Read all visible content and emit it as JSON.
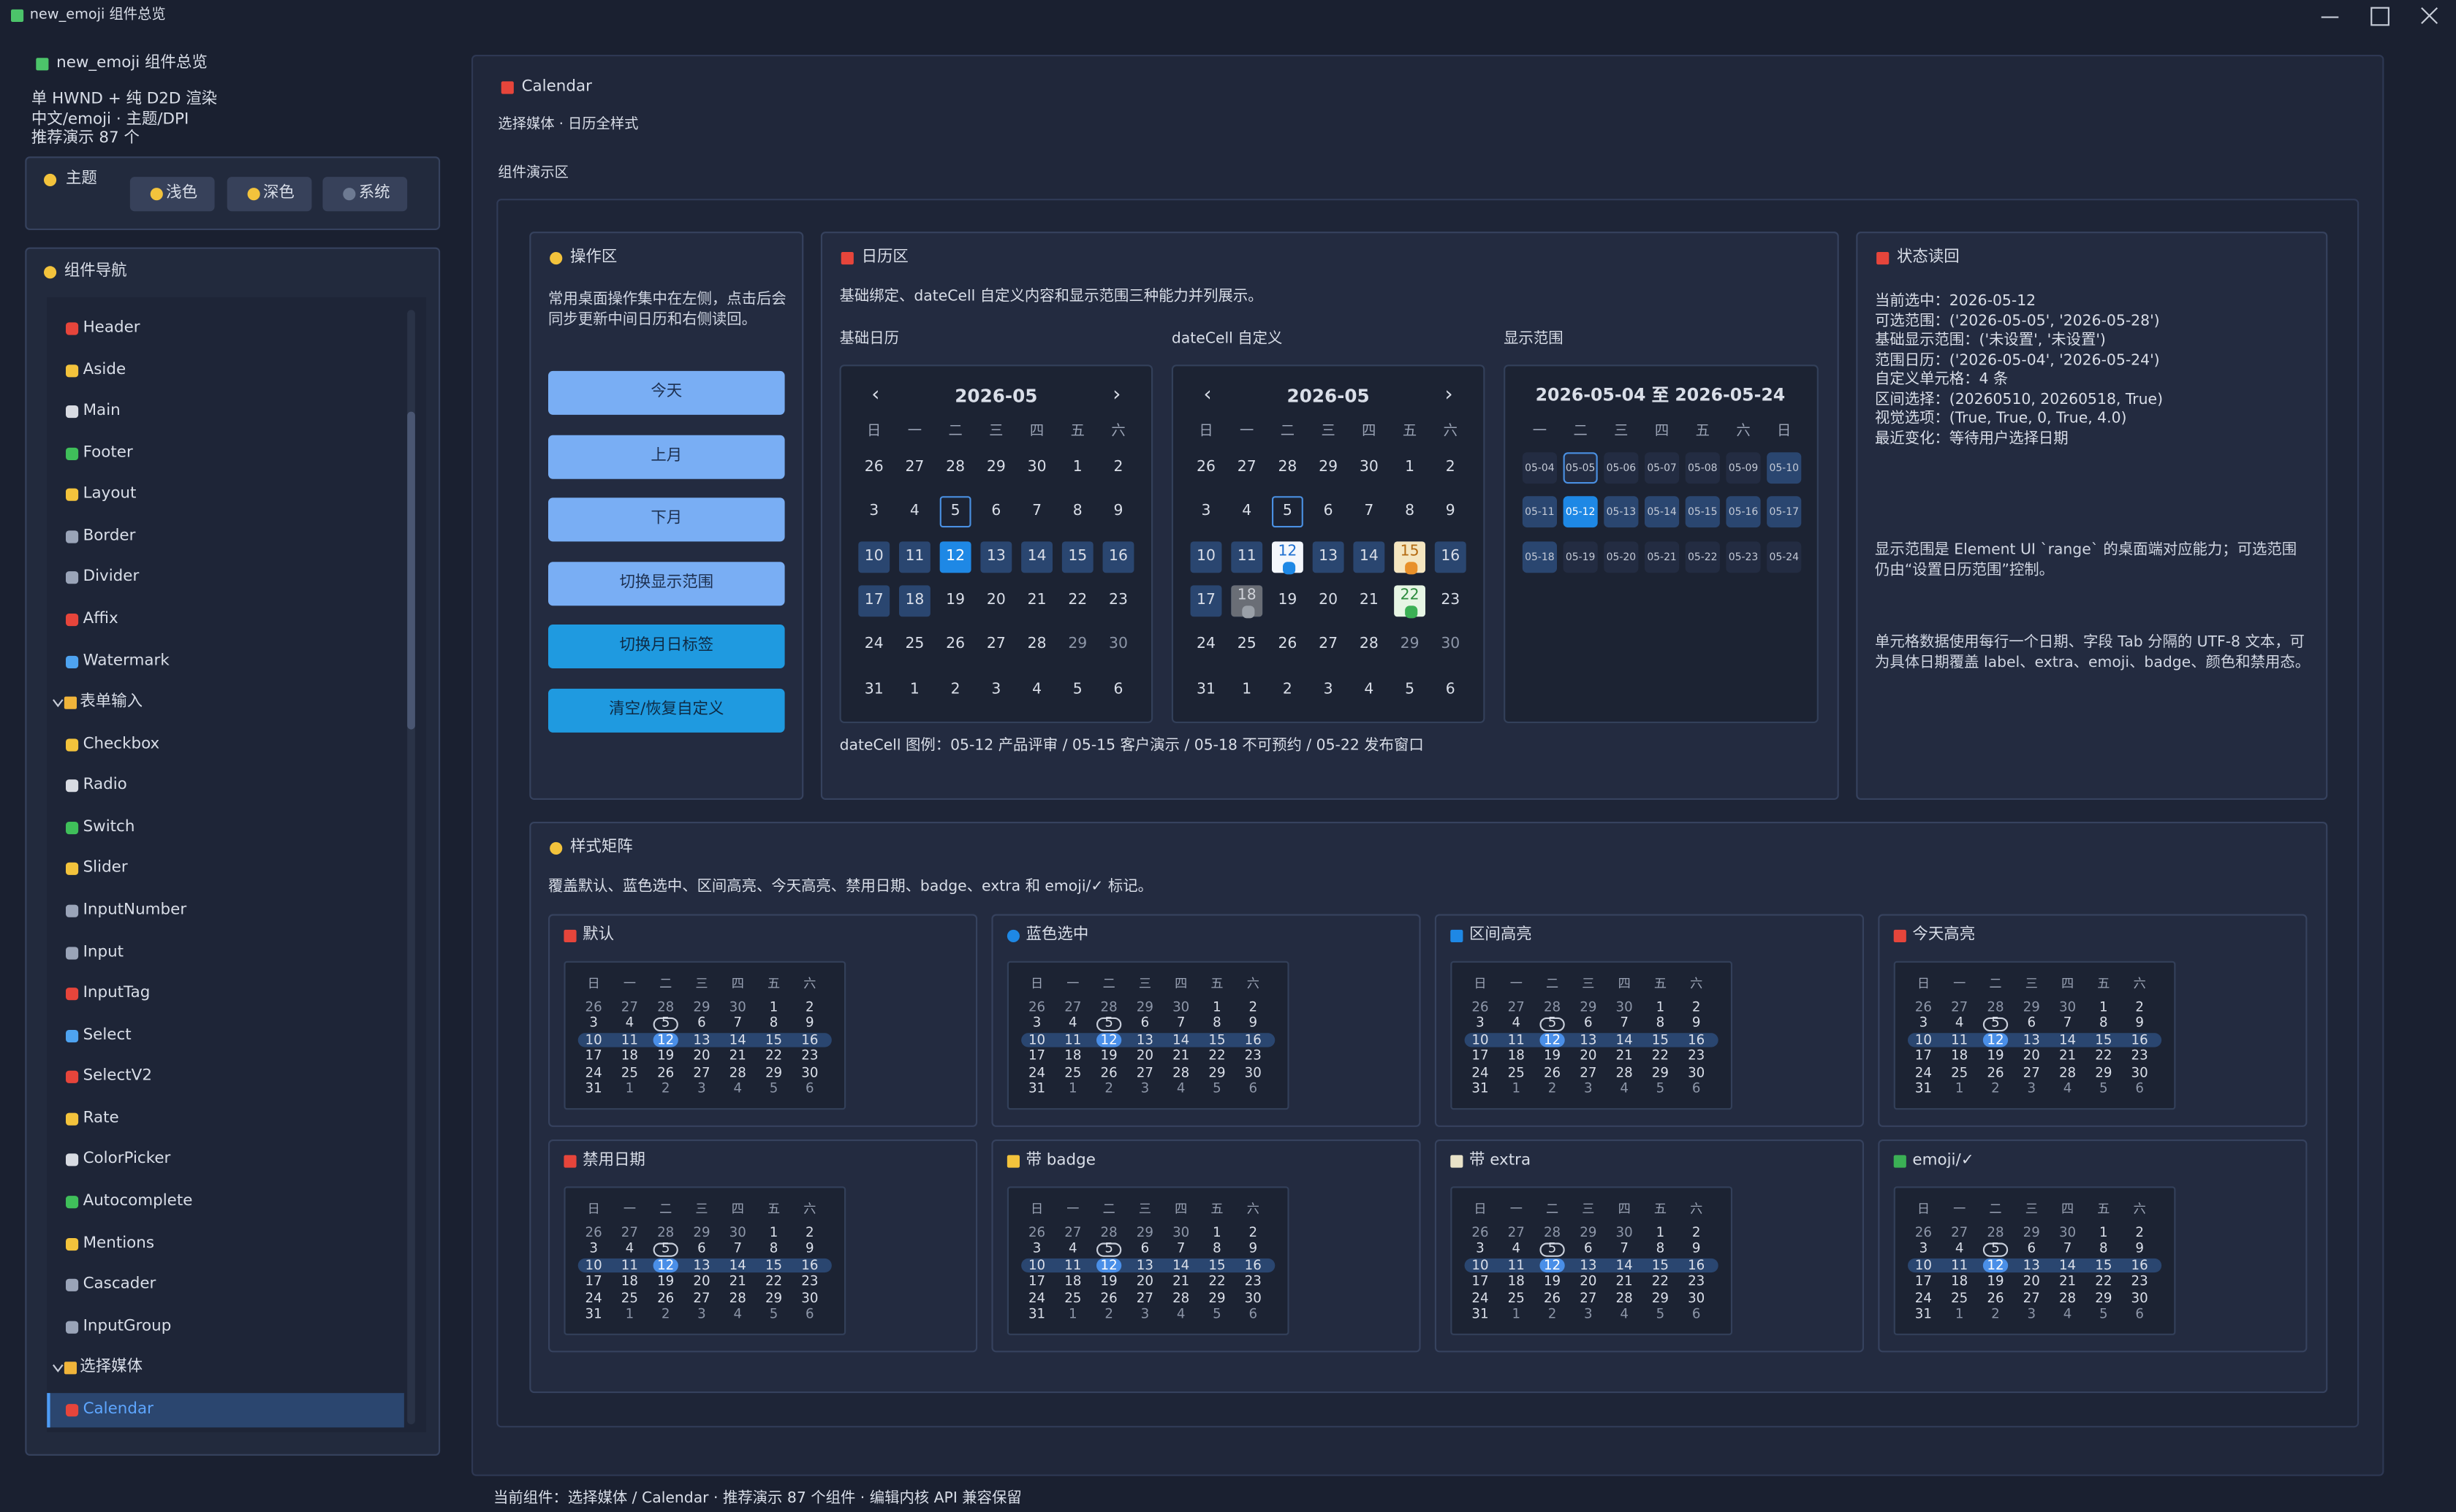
{
  "window": {
    "title": "new_emoji 组件总览"
  },
  "sidebar": {
    "app_title": "new_emoji 组件总览",
    "info": [
      "单 HWND + 纯 D2D 渲染",
      "中文/emoji · 主题/DPI",
      "推荐演示 87 个"
    ],
    "theme": {
      "label": "主题",
      "buttons": [
        "浅色",
        "深色",
        "系统"
      ]
    },
    "nav": {
      "title": "组件导航",
      "items": [
        {
          "label": "Header"
        },
        {
          "label": "Aside"
        },
        {
          "label": "Main"
        },
        {
          "label": "Footer"
        },
        {
          "label": "Layout"
        },
        {
          "label": "Border"
        },
        {
          "label": "Divider"
        },
        {
          "label": "Affix"
        },
        {
          "label": "Watermark"
        },
        {
          "label": "表单输入",
          "group": true
        },
        {
          "label": "Checkbox"
        },
        {
          "label": "Radio"
        },
        {
          "label": "Switch"
        },
        {
          "label": "Slider"
        },
        {
          "label": "InputNumber"
        },
        {
          "label": "Input"
        },
        {
          "label": "InputTag"
        },
        {
          "label": "Select"
        },
        {
          "label": "SelectV2"
        },
        {
          "label": "Rate"
        },
        {
          "label": "ColorPicker"
        },
        {
          "label": "Autocomplete"
        },
        {
          "label": "Mentions"
        },
        {
          "label": "Cascader"
        },
        {
          "label": "InputGroup"
        },
        {
          "label": "选择媒体",
          "group": true
        },
        {
          "label": "Calendar",
          "selected": true
        }
      ]
    }
  },
  "main": {
    "title": "Calendar",
    "subtitle": "选择媒体 · 日历全样式",
    "demo_label": "组件演示区",
    "operations": {
      "title": "操作区",
      "description": "常用桌面操作集中在左侧，点击后会同步更新中间日历和右侧读回。",
      "buttons": [
        "今天",
        "上月",
        "下月",
        "切换显示范围",
        "切换月日标签",
        "清空/恢复自定义"
      ]
    },
    "calendars": {
      "title": "日历区",
      "description": "基础绑定、dateCell 自定义内容和显示范围三种能力并列展示。",
      "basic_label": "基础日历",
      "datecell_label": "dateCell 自定义",
      "range_label": "显示范围",
      "month": "2026-05",
      "prev": "‹",
      "next": "›",
      "weekdays_sun": [
        "日",
        "一",
        "二",
        "三",
        "四",
        "五",
        "六"
      ],
      "weekdays_mon": [
        "一",
        "二",
        "三",
        "四",
        "五",
        "六",
        "日"
      ],
      "month_days": [
        26,
        27,
        28,
        29,
        30,
        1,
        2,
        3,
        4,
        5,
        6,
        7,
        8,
        9,
        10,
        11,
        12,
        13,
        14,
        15,
        16,
        17,
        18,
        19,
        20,
        21,
        22,
        23,
        24,
        25,
        26,
        27,
        28,
        29,
        30,
        31,
        1,
        2,
        3,
        4,
        5,
        6
      ],
      "range_header": "2026-05-04 至 2026-05-24",
      "range_days": [
        "05-04",
        "05-05",
        "05-06",
        "05-07",
        "05-08",
        "05-09",
        "05-10",
        "05-11",
        "05-12",
        "05-13",
        "05-14",
        "05-15",
        "05-16",
        "05-17",
        "05-18",
        "05-19",
        "05-20",
        "05-21",
        "05-22",
        "05-23",
        "05-24"
      ],
      "legend": "dateCell 图例：05-12 产品评审 / 05-15 客户演示 / 05-18 不可预约 / 05-22 发布窗口"
    },
    "status": {
      "title": "状态读回",
      "lines": [
        "当前选中：2026-05-12",
        "可选范围：('2026-05-05', '2026-05-28')",
        "基础显示范围：('未设置', '未设置')",
        "范围日历：('2026-05-04', '2026-05-24')",
        "自定义单元格：4 条",
        "区间选择：(20260510, 20260518, True)",
        "视觉选项：(True, True, 0, True, 4.0)",
        "最近变化：等待用户选择日期"
      ],
      "notes": [
        "显示范围是 Element UI `range` 的桌面端对应能力；可选范围仍由“设置日历范围”控制。",
        "单元格数据使用每行一个日期、字段 Tab 分隔的 UTF-8 文本，可为具体日期覆盖 label、extra、emoji、badge、颜色和禁用态。"
      ]
    },
    "matrix": {
      "title": "样式矩阵",
      "description": "覆盖默认、蓝色选中、区间高亮、今天高亮、禁用日期、badge、extra 和 emoji/✓ 标记。",
      "cards": [
        "默认",
        "蓝色选中",
        "区间高亮",
        "今天高亮",
        "禁用日期",
        "带 badge",
        "带 extra",
        "emoji/✓"
      ]
    }
  },
  "footer": "当前组件：选择媒体 / Calendar · 推荐演示 87 个组件 · 编辑内核 API 兼容保留"
}
